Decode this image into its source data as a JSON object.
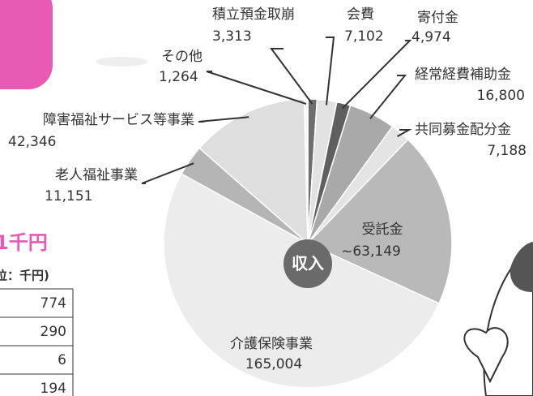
{
  "chart_data": {
    "type": "pie",
    "center_label": "収入",
    "categories": [
      "積立預金取崩",
      "会費",
      "寄付金",
      "経常経費補助金",
      "共同募金配分金",
      "受託金",
      "介護保険事業",
      "老人福祉事業",
      "障害福祉サービス等事業",
      "その他"
    ],
    "values": [
      3313,
      7102,
      4974,
      16800,
      7188,
      63149,
      165004,
      11151,
      42346,
      1264
    ],
    "value_labels": [
      "3,313",
      "7,102",
      "4,974",
      "16,800",
      "7,188",
      "~63,149",
      "165,004",
      "11,151",
      "42,346",
      "1,264"
    ],
    "colors": [
      "#6e6e6e",
      "#e2e2e2",
      "#5f5f5f",
      "#a9a9a9",
      "#e4e4e4",
      "#b9b9b9",
      "#ececec",
      "#b5b5b5",
      "#dedede",
      "#f8f8f8"
    ]
  },
  "table": {
    "title": "1千円",
    "unit": "位：千円)",
    "rows": [
      "774",
      "290",
      "6",
      "194"
    ]
  }
}
